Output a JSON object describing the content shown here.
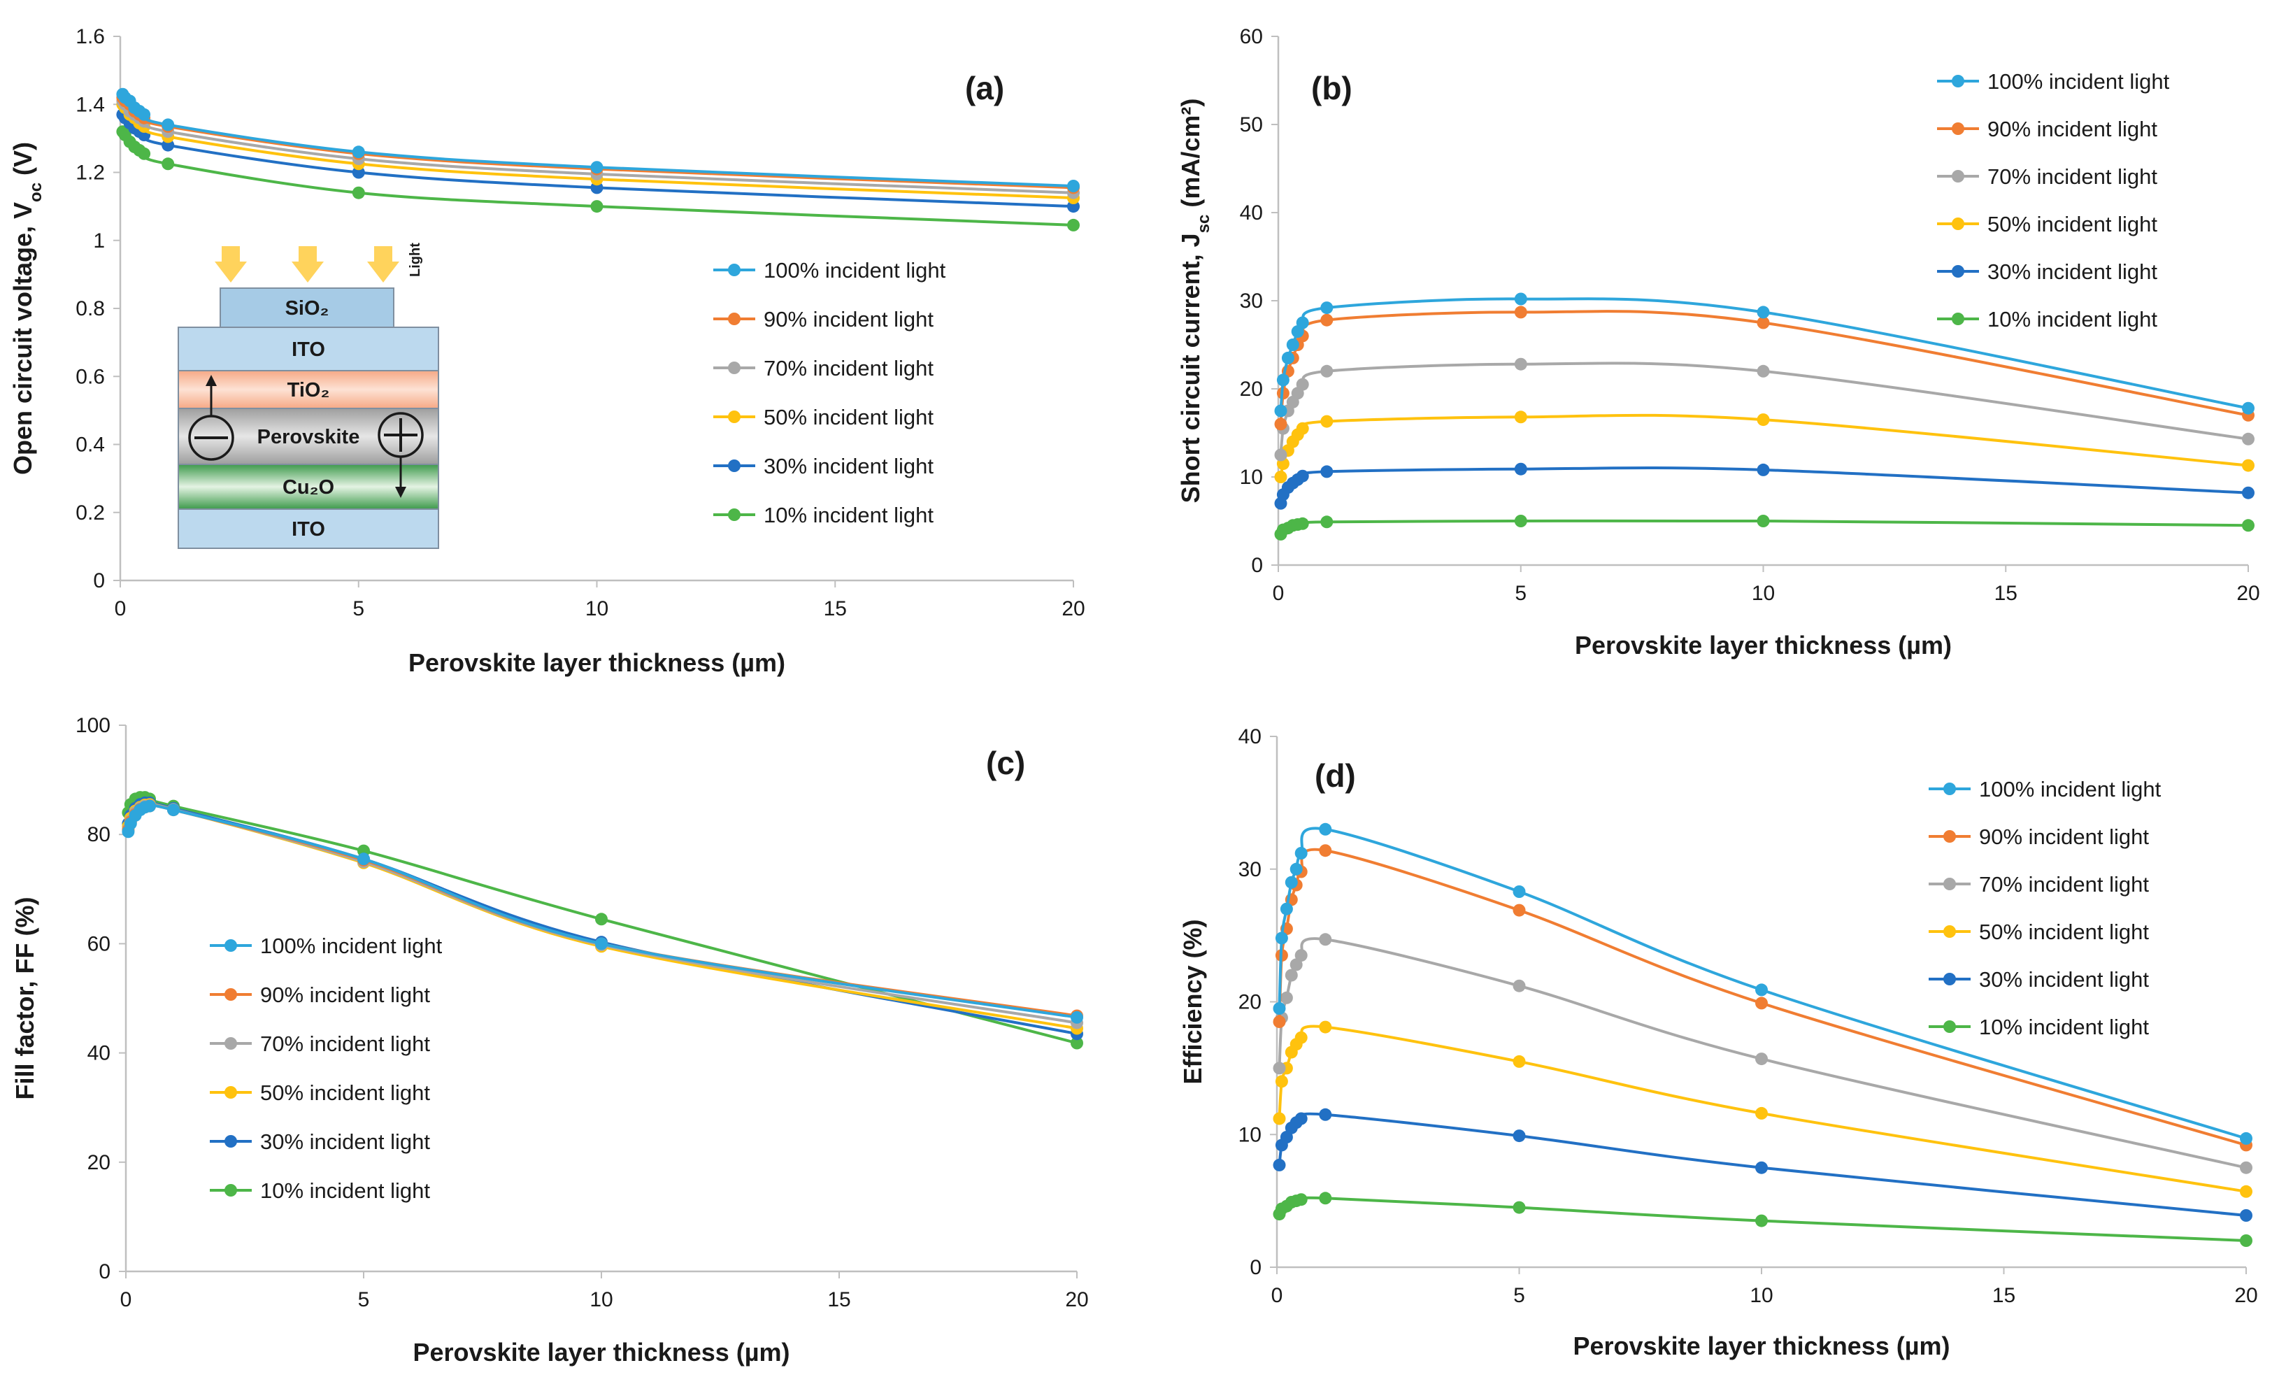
{
  "colors": {
    "100%": "#2ea6dc",
    "90%": "#f07d32",
    "70%": "#a8a8a8",
    "50%": "#ffc20e",
    "30%": "#2270c4",
    "10%": "#4db648"
  },
  "chart_data": [
    {
      "type": "line",
      "panel_label": "(a)",
      "xlabel": "Perovskite layer thickness (µm)",
      "ylabel_main": "Open circuit voltage, V",
      "ylabel_sub": "oc",
      "ylabel_tail": " (V)",
      "xlim": [
        0,
        20
      ],
      "ylim": [
        0,
        1.6
      ],
      "xticks": [
        0,
        5,
        10,
        15,
        20
      ],
      "yticks": [
        0,
        0.2,
        0.4,
        0.6,
        0.8,
        1,
        1.2,
        1.4,
        1.6
      ],
      "ytick_labels": [
        "0",
        "0.2",
        "0.4",
        "0.6",
        "0.8",
        "1",
        "1.2",
        "1.4",
        "1.6"
      ],
      "legend_position": "right-middle",
      "x": [
        0.05,
        0.1,
        0.2,
        0.3,
        0.4,
        0.5,
        1,
        5,
        10,
        20
      ],
      "series": [
        {
          "name": "100% incident light",
          "key": "100%",
          "values": [
            1.43,
            1.42,
            1.41,
            1.39,
            1.38,
            1.37,
            1.34,
            1.26,
            1.215,
            1.16
          ]
        },
        {
          "name": "90% incident light",
          "key": "90%",
          "values": [
            1.42,
            1.41,
            1.4,
            1.38,
            1.37,
            1.36,
            1.335,
            1.255,
            1.21,
            1.155
          ]
        },
        {
          "name": "70% incident light",
          "key": "70%",
          "values": [
            1.41,
            1.4,
            1.38,
            1.37,
            1.36,
            1.35,
            1.32,
            1.24,
            1.195,
            1.14
          ]
        },
        {
          "name": "50% incident light",
          "key": "50%",
          "values": [
            1.4,
            1.39,
            1.37,
            1.36,
            1.345,
            1.335,
            1.305,
            1.225,
            1.18,
            1.125
          ]
        },
        {
          "name": "30% incident light",
          "key": "30%",
          "values": [
            1.37,
            1.36,
            1.345,
            1.33,
            1.32,
            1.31,
            1.28,
            1.2,
            1.155,
            1.1
          ]
        },
        {
          "name": "10% incident light",
          "key": "10%",
          "values": [
            1.32,
            1.31,
            1.29,
            1.275,
            1.265,
            1.255,
            1.225,
            1.14,
            1.1,
            1.045
          ]
        }
      ],
      "inset": {
        "layers": [
          "SiO₂",
          "ITO",
          "TiO₂",
          "Perovskite",
          "Cu₂O",
          "ITO"
        ],
        "light_label": "Light"
      }
    },
    {
      "type": "line",
      "panel_label": "(b)",
      "xlabel": "Perovskite layer thickness (µm)",
      "ylabel_main": "Short circuit current, J",
      "ylabel_sub": "sc",
      "ylabel_tail": " (mA/cm²)",
      "xlim": [
        0,
        20
      ],
      "ylim": [
        0,
        60
      ],
      "xticks": [
        0,
        5,
        10,
        15,
        20
      ],
      "yticks": [
        0,
        10,
        20,
        30,
        40,
        50,
        60
      ],
      "ytick_labels": [
        "0",
        "10",
        "20",
        "30",
        "40",
        "50",
        "60"
      ],
      "legend_position": "top-right",
      "x": [
        0.05,
        0.1,
        0.2,
        0.3,
        0.4,
        0.5,
        1,
        5,
        10,
        20
      ],
      "series": [
        {
          "name": "100% incident light",
          "key": "100%",
          "values": [
            17.5,
            21,
            23.5,
            25,
            26.5,
            27.5,
            29.2,
            30.2,
            28.7,
            17.8
          ]
        },
        {
          "name": "90% incident light",
          "key": "90%",
          "values": [
            16,
            19.5,
            22,
            23.5,
            25,
            26,
            27.8,
            28.7,
            27.5,
            17
          ]
        },
        {
          "name": "70% incident light",
          "key": "70%",
          "values": [
            12.5,
            15.5,
            17.5,
            18.5,
            19.5,
            20.5,
            22,
            22.8,
            22,
            14.3
          ]
        },
        {
          "name": "50% incident light",
          "key": "50%",
          "values": [
            10,
            11.5,
            13,
            14,
            14.8,
            15.5,
            16.3,
            16.8,
            16.5,
            11.3
          ]
        },
        {
          "name": "30% incident light",
          "key": "30%",
          "values": [
            7,
            8,
            8.8,
            9.3,
            9.7,
            10.1,
            10.6,
            10.9,
            10.8,
            8.2
          ]
        },
        {
          "name": "10% incident light",
          "key": "10%",
          "values": [
            3.5,
            4,
            4.2,
            4.5,
            4.6,
            4.7,
            4.9,
            5,
            5,
            4.5
          ]
        }
      ]
    },
    {
      "type": "line",
      "panel_label": "(c)",
      "xlabel": "Perovskite layer thickness (µm)",
      "ylabel_main": "Fill factor, FF (%)",
      "ylabel_sub": "",
      "ylabel_tail": "",
      "xlim": [
        0,
        20
      ],
      "ylim": [
        0,
        100
      ],
      "xticks": [
        0,
        5,
        10,
        15,
        20
      ],
      "yticks": [
        0,
        20,
        40,
        60,
        80,
        100
      ],
      "ytick_labels": [
        "0",
        "20",
        "40",
        "60",
        "80",
        "100"
      ],
      "legend_position": "left-middle",
      "x": [
        0.05,
        0.1,
        0.2,
        0.3,
        0.4,
        0.5,
        1,
        5,
        10,
        20
      ],
      "series": [
        {
          "name": "100% incident light",
          "key": "100%",
          "values": [
            80.5,
            82,
            83.5,
            84.5,
            85,
            85.2,
            84.5,
            75.5,
            60,
            46.5
          ]
        },
        {
          "name": "90% incident light",
          "key": "90%",
          "values": [
            80.8,
            82.3,
            83.7,
            84.6,
            85,
            85.2,
            84.5,
            75.3,
            60,
            46.8
          ]
        },
        {
          "name": "70% incident light",
          "key": "70%",
          "values": [
            81,
            82.5,
            84,
            84.8,
            85.2,
            85.3,
            84.6,
            75,
            59.8,
            45.5
          ]
        },
        {
          "name": "50% incident light",
          "key": "50%",
          "values": [
            81.5,
            83,
            84.3,
            85,
            85.4,
            85.5,
            84.6,
            74.8,
            59.5,
            44.5
          ]
        },
        {
          "name": "30% incident light",
          "key": "30%",
          "values": [
            82,
            83.5,
            84.8,
            85.5,
            85.8,
            85.8,
            84.8,
            75.5,
            60.3,
            43.5
          ]
        },
        {
          "name": "10% incident light",
          "key": "10%",
          "values": [
            84,
            85.5,
            86.5,
            86.8,
            86.8,
            86.5,
            85.2,
            77,
            64.5,
            41.8
          ]
        }
      ]
    },
    {
      "type": "line",
      "panel_label": "(d)",
      "xlabel": "Perovskite layer thickness (µm)",
      "ylabel_main": "Efficiency (%)",
      "ylabel_sub": "",
      "ylabel_tail": "",
      "xlim": [
        0,
        20
      ],
      "ylim": [
        0,
        40
      ],
      "xticks": [
        0,
        5,
        10,
        15,
        20
      ],
      "yticks": [
        0,
        10,
        20,
        30,
        40
      ],
      "ytick_labels": [
        "0",
        "10",
        "20",
        "30",
        "40"
      ],
      "legend_position": "top-right",
      "x": [
        0.05,
        0.1,
        0.2,
        0.3,
        0.4,
        0.5,
        1,
        5,
        10,
        20
      ],
      "series": [
        {
          "name": "100% incident light",
          "key": "100%",
          "values": [
            19.5,
            24.8,
            27,
            29,
            30,
            31.2,
            33,
            28.3,
            20.9,
            9.7
          ]
        },
        {
          "name": "90% incident light",
          "key": "90%",
          "values": [
            18.5,
            23.5,
            25.5,
            27.7,
            28.8,
            29.8,
            31.4,
            26.9,
            19.9,
            9.2
          ]
        },
        {
          "name": "70% incident light",
          "key": "70%",
          "values": [
            15,
            18.8,
            20.3,
            22,
            22.8,
            23.5,
            24.7,
            21.2,
            15.7,
            7.5
          ]
        },
        {
          "name": "50% incident light",
          "key": "50%",
          "values": [
            11.2,
            14,
            15,
            16.2,
            16.8,
            17.3,
            18.1,
            15.5,
            11.6,
            5.7
          ]
        },
        {
          "name": "30% incident light",
          "key": "30%",
          "values": [
            7.7,
            9.2,
            9.8,
            10.5,
            10.9,
            11.2,
            11.5,
            9.9,
            7.5,
            3.9
          ]
        },
        {
          "name": "10% incident light",
          "key": "10%",
          "values": [
            4,
            4.4,
            4.6,
            4.9,
            5,
            5.1,
            5.2,
            4.5,
            3.5,
            2
          ]
        }
      ]
    }
  ]
}
